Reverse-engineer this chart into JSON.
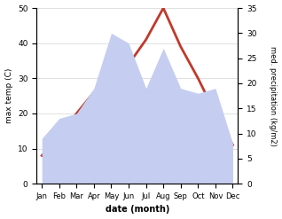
{
  "months": [
    "Jan",
    "Feb",
    "Mar",
    "Apr",
    "May",
    "Jun",
    "Jul",
    "Aug",
    "Sep",
    "Oct",
    "Nov",
    "Dec"
  ],
  "temp": [
    8,
    13,
    20,
    26,
    31,
    34,
    41,
    50,
    39,
    30,
    20,
    11
  ],
  "precip": [
    9,
    13,
    14,
    19,
    30,
    28,
    19,
    27,
    19,
    18,
    19,
    8
  ],
  "temp_color": "#c0392b",
  "precip_fill_color": "#c5cdf0",
  "temp_ylim": [
    0,
    50
  ],
  "precip_ylim": [
    0,
    35
  ],
  "xlabel": "date (month)",
  "ylabel_left": "max temp (C)",
  "ylabel_right": "med. precipitation (kg/m2)",
  "bg_color": "#ffffff",
  "temp_linewidth": 2.0
}
